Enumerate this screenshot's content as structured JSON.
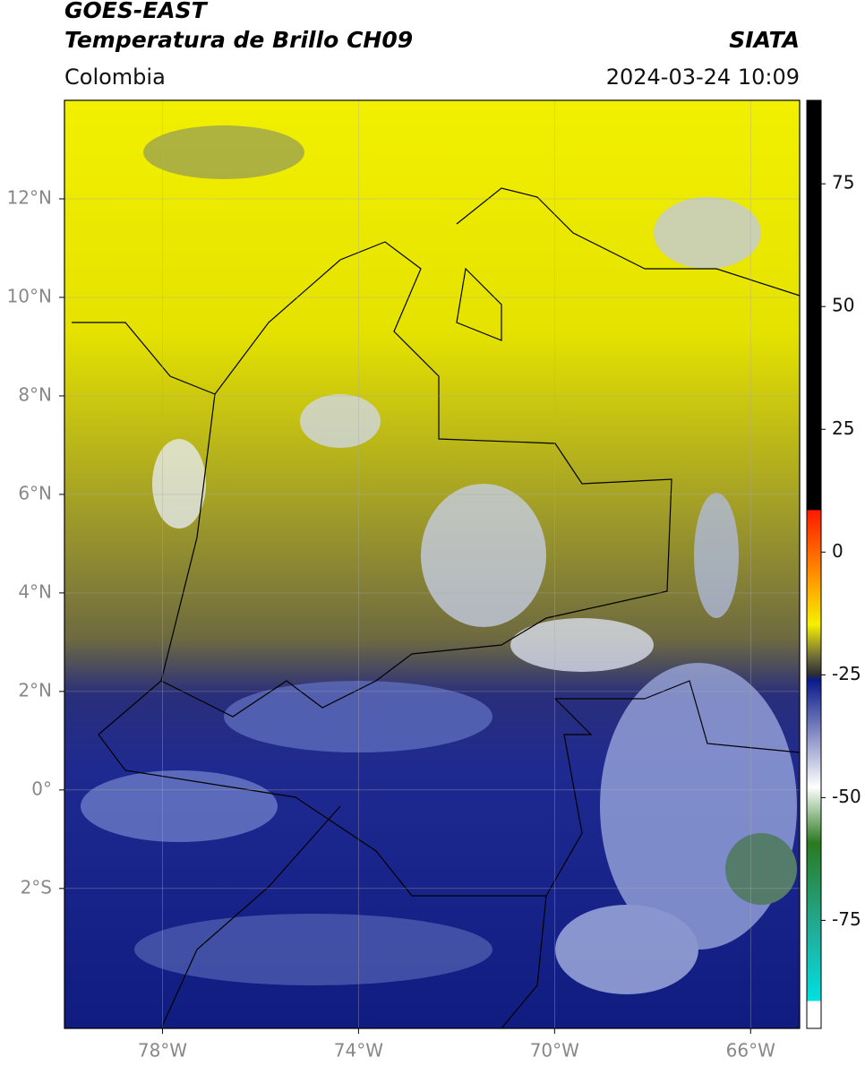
{
  "header": {
    "satellite": "GOES-EAST",
    "product": "Temperatura de Brillo CH09",
    "source": "SIATA",
    "region": "Colombia",
    "datetime": "2024-03-24 10:09"
  },
  "map": {
    "xlim": [
      -80,
      -65
    ],
    "ylim": [
      -4.84,
      14
    ],
    "grid": true,
    "xticks": [
      {
        "value": -78,
        "label": "78°W"
      },
      {
        "value": -74,
        "label": "74°W"
      },
      {
        "value": -70,
        "label": "70°W"
      },
      {
        "value": -66,
        "label": "66°W"
      }
    ],
    "yticks": [
      {
        "value": 12,
        "label": "12°N"
      },
      {
        "value": 10,
        "label": "10°N"
      },
      {
        "value": 8,
        "label": "8°N"
      },
      {
        "value": 6,
        "label": "6°N"
      },
      {
        "value": 4,
        "label": "4°N"
      },
      {
        "value": 2,
        "label": "2°N"
      },
      {
        "value": 0,
        "label": "0°"
      },
      {
        "value": -2,
        "label": "2°S"
      }
    ]
  },
  "colorbar": {
    "lim": [
      -97,
      92
    ],
    "ticks": [
      75,
      50,
      25,
      0,
      -25,
      -50,
      -75
    ]
  }
}
